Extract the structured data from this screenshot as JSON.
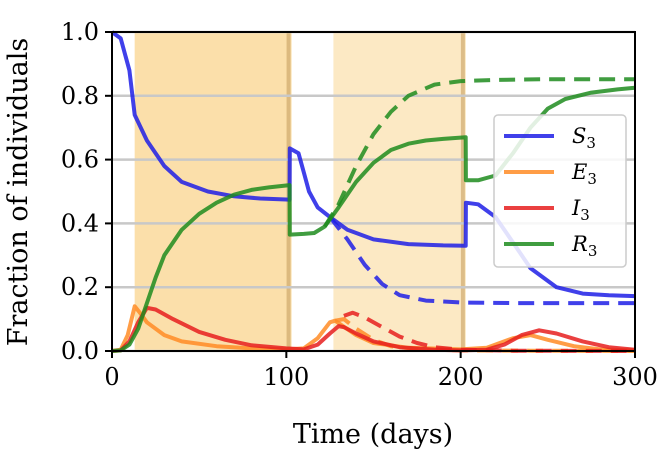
{
  "chart_data": {
    "type": "line",
    "xlabel": "Time (days)",
    "ylabel": "Fraction of individuals",
    "xlim": [
      0,
      300
    ],
    "ylim": [
      0,
      1
    ],
    "xticks": [
      "0",
      "100",
      "200",
      "300"
    ],
    "yticks": [
      "0.0",
      "0.2",
      "0.4",
      "0.6",
      "0.8",
      "1.0"
    ],
    "grid": "horizontal",
    "legend_position": "center-right",
    "legend": [
      {
        "name": "S",
        "sub": "3",
        "color": "#1f1fe6"
      },
      {
        "name": "E",
        "sub": "3",
        "color": "#ff8c26"
      },
      {
        "name": "I",
        "sub": "3",
        "color": "#e61f1f"
      },
      {
        "name": "R",
        "sub": "3",
        "color": "#1f8c1f"
      }
    ],
    "shaded_intervals": [
      {
        "x0": 13,
        "x1": 103,
        "color": "#f7bf55",
        "alpha": 0.5
      },
      {
        "x0": 127,
        "x1": 203,
        "color": "#f7bf55",
        "alpha": 0.35
      }
    ],
    "series": [
      {
        "name": "S",
        "color": "#1f1fe6",
        "dash": false,
        "points": [
          [
            0,
            1.0
          ],
          [
            5,
            0.98
          ],
          [
            10,
            0.88
          ],
          [
            13,
            0.74
          ],
          [
            20,
            0.66
          ],
          [
            30,
            0.58
          ],
          [
            40,
            0.53
          ],
          [
            55,
            0.5
          ],
          [
            70,
            0.485
          ],
          [
            85,
            0.478
          ],
          [
            100,
            0.475
          ],
          [
            101.9,
            0.474
          ],
          [
            102,
            0.635
          ],
          [
            107,
            0.62
          ],
          [
            110,
            0.56
          ],
          [
            113,
            0.5
          ],
          [
            118,
            0.45
          ],
          [
            125,
            0.42
          ],
          [
            135,
            0.38
          ],
          [
            150,
            0.35
          ],
          [
            170,
            0.335
          ],
          [
            190,
            0.331
          ],
          [
            202.9,
            0.33
          ],
          [
            203,
            0.465
          ],
          [
            210,
            0.46
          ],
          [
            220,
            0.42
          ],
          [
            230,
            0.34
          ],
          [
            240,
            0.26
          ],
          [
            255,
            0.2
          ],
          [
            270,
            0.18
          ],
          [
            285,
            0.175
          ],
          [
            300,
            0.172
          ]
        ]
      },
      {
        "name": "S (dashed)",
        "color": "#1f1fe6",
        "dash": true,
        "points": [
          [
            125,
            0.42
          ],
          [
            135,
            0.35
          ],
          [
            145,
            0.27
          ],
          [
            155,
            0.21
          ],
          [
            165,
            0.175
          ],
          [
            180,
            0.158
          ],
          [
            200,
            0.152
          ],
          [
            230,
            0.15
          ],
          [
            260,
            0.15
          ],
          [
            300,
            0.15
          ]
        ]
      },
      {
        "name": "E",
        "color": "#ff8c26",
        "dash": false,
        "points": [
          [
            0,
            0.0
          ],
          [
            5,
            0.004
          ],
          [
            9,
            0.05
          ],
          [
            13,
            0.14
          ],
          [
            16,
            0.12
          ],
          [
            20,
            0.09
          ],
          [
            30,
            0.05
          ],
          [
            40,
            0.03
          ],
          [
            60,
            0.015
          ],
          [
            80,
            0.008
          ],
          [
            100,
            0.005
          ],
          [
            110,
            0.008
          ],
          [
            118,
            0.04
          ],
          [
            125,
            0.09
          ],
          [
            128,
            0.095
          ],
          [
            132,
            0.08
          ],
          [
            140,
            0.05
          ],
          [
            150,
            0.025
          ],
          [
            170,
            0.01
          ],
          [
            200,
            0.005
          ],
          [
            215,
            0.01
          ],
          [
            230,
            0.04
          ],
          [
            240,
            0.05
          ],
          [
            250,
            0.035
          ],
          [
            265,
            0.015
          ],
          [
            280,
            0.005
          ],
          [
            300,
            0.002
          ]
        ]
      },
      {
        "name": "E (dashed)",
        "color": "#ff8c26",
        "dash": true,
        "points": [
          [
            128,
            0.095
          ],
          [
            133,
            0.1
          ],
          [
            140,
            0.07
          ],
          [
            150,
            0.035
          ],
          [
            160,
            0.015
          ],
          [
            175,
            0.006
          ],
          [
            200,
            0.002
          ],
          [
            240,
            0.001
          ],
          [
            300,
            0.0
          ]
        ]
      },
      {
        "name": "I",
        "color": "#e61f1f",
        "dash": false,
        "points": [
          [
            0,
            0.0
          ],
          [
            5,
            0.002
          ],
          [
            10,
            0.03
          ],
          [
            15,
            0.09
          ],
          [
            20,
            0.135
          ],
          [
            25,
            0.13
          ],
          [
            35,
            0.1
          ],
          [
            50,
            0.06
          ],
          [
            65,
            0.035
          ],
          [
            80,
            0.018
          ],
          [
            100,
            0.008
          ],
          [
            110,
            0.005
          ],
          [
            118,
            0.02
          ],
          [
            125,
            0.055
          ],
          [
            130,
            0.078
          ],
          [
            133,
            0.075
          ],
          [
            140,
            0.055
          ],
          [
            150,
            0.03
          ],
          [
            165,
            0.012
          ],
          [
            185,
            0.004
          ],
          [
            200,
            0.002
          ],
          [
            215,
            0.004
          ],
          [
            225,
            0.02
          ],
          [
            235,
            0.05
          ],
          [
            245,
            0.065
          ],
          [
            255,
            0.055
          ],
          [
            270,
            0.03
          ],
          [
            285,
            0.012
          ],
          [
            300,
            0.004
          ]
        ]
      },
      {
        "name": "I (dashed)",
        "color": "#e61f1f",
        "dash": true,
        "points": [
          [
            133,
            0.11
          ],
          [
            138,
            0.12
          ],
          [
            145,
            0.105
          ],
          [
            155,
            0.075
          ],
          [
            165,
            0.045
          ],
          [
            175,
            0.025
          ],
          [
            185,
            0.012
          ],
          [
            200,
            0.004
          ],
          [
            230,
            0.001
          ],
          [
            300,
            0.0
          ]
        ]
      },
      {
        "name": "R",
        "color": "#1f8c1f",
        "dash": false,
        "points": [
          [
            0,
            0.0
          ],
          [
            5,
            0.002
          ],
          [
            10,
            0.02
          ],
          [
            15,
            0.07
          ],
          [
            20,
            0.15
          ],
          [
            25,
            0.23
          ],
          [
            30,
            0.3
          ],
          [
            40,
            0.38
          ],
          [
            50,
            0.43
          ],
          [
            60,
            0.465
          ],
          [
            70,
            0.49
          ],
          [
            80,
            0.505
          ],
          [
            90,
            0.513
          ],
          [
            101.9,
            0.52
          ],
          [
            102,
            0.365
          ],
          [
            110,
            0.367
          ],
          [
            116,
            0.37
          ],
          [
            122,
            0.39
          ],
          [
            130,
            0.45
          ],
          [
            140,
            0.53
          ],
          [
            150,
            0.59
          ],
          [
            160,
            0.63
          ],
          [
            170,
            0.65
          ],
          [
            180,
            0.66
          ],
          [
            190,
            0.665
          ],
          [
            202.9,
            0.67
          ],
          [
            203,
            0.535
          ],
          [
            210,
            0.535
          ],
          [
            220,
            0.55
          ],
          [
            230,
            0.62
          ],
          [
            240,
            0.7
          ],
          [
            250,
            0.76
          ],
          [
            260,
            0.79
          ],
          [
            275,
            0.81
          ],
          [
            290,
            0.82
          ],
          [
            300,
            0.825
          ]
        ]
      },
      {
        "name": "R (dashed)",
        "color": "#1f8c1f",
        "dash": true,
        "points": [
          [
            122,
            0.39
          ],
          [
            130,
            0.46
          ],
          [
            140,
            0.58
          ],
          [
            150,
            0.68
          ],
          [
            160,
            0.75
          ],
          [
            170,
            0.8
          ],
          [
            185,
            0.835
          ],
          [
            200,
            0.846
          ],
          [
            220,
            0.85
          ],
          [
            250,
            0.852
          ],
          [
            300,
            0.852
          ]
        ]
      }
    ]
  }
}
